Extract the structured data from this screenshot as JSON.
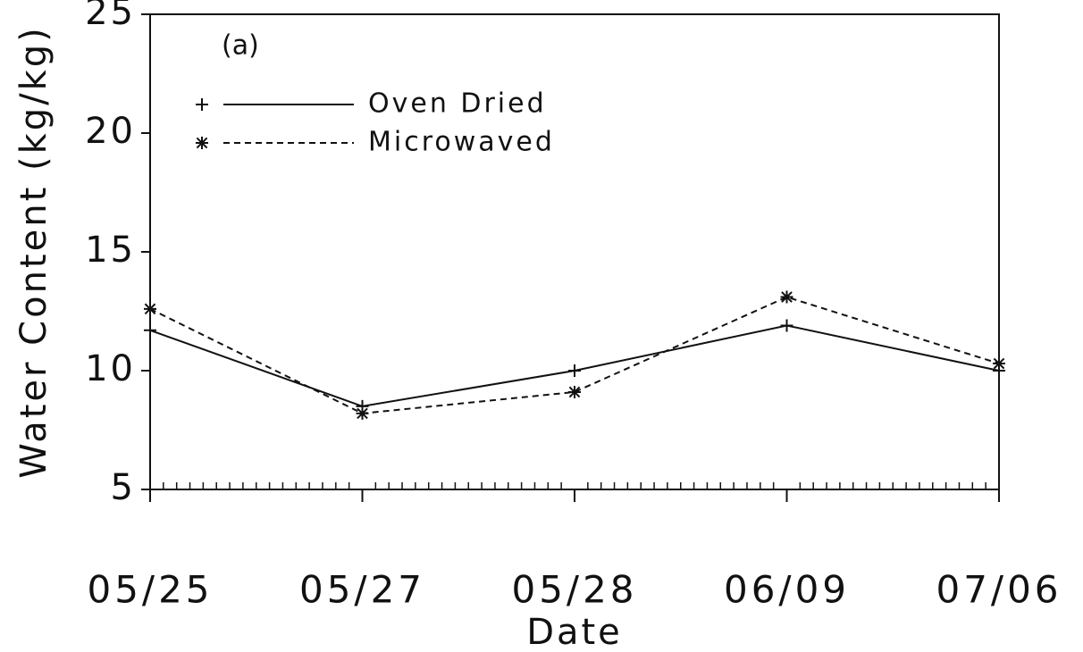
{
  "chart_data": {
    "type": "line",
    "annotation": "(a)",
    "x_label": "Date",
    "y_label": "Water Content (kg/kg)",
    "categories": [
      "05/25",
      "05/27",
      "05/28",
      "06/09",
      "07/06"
    ],
    "series": [
      {
        "name": "Oven Dried",
        "color": "#111111",
        "marker": "plus",
        "dashed": false,
        "values": [
          11.7,
          8.5,
          10.0,
          11.9,
          10.0
        ]
      },
      {
        "name": "Microwaved",
        "color": "#111111",
        "marker": "star",
        "dashed": true,
        "values": [
          12.6,
          8.2,
          9.1,
          13.1,
          10.3
        ]
      }
    ],
    "ylim": [
      5,
      25
    ],
    "yticks": [
      5,
      10,
      15,
      20,
      25
    ],
    "grid": false,
    "legend": "upper left"
  }
}
